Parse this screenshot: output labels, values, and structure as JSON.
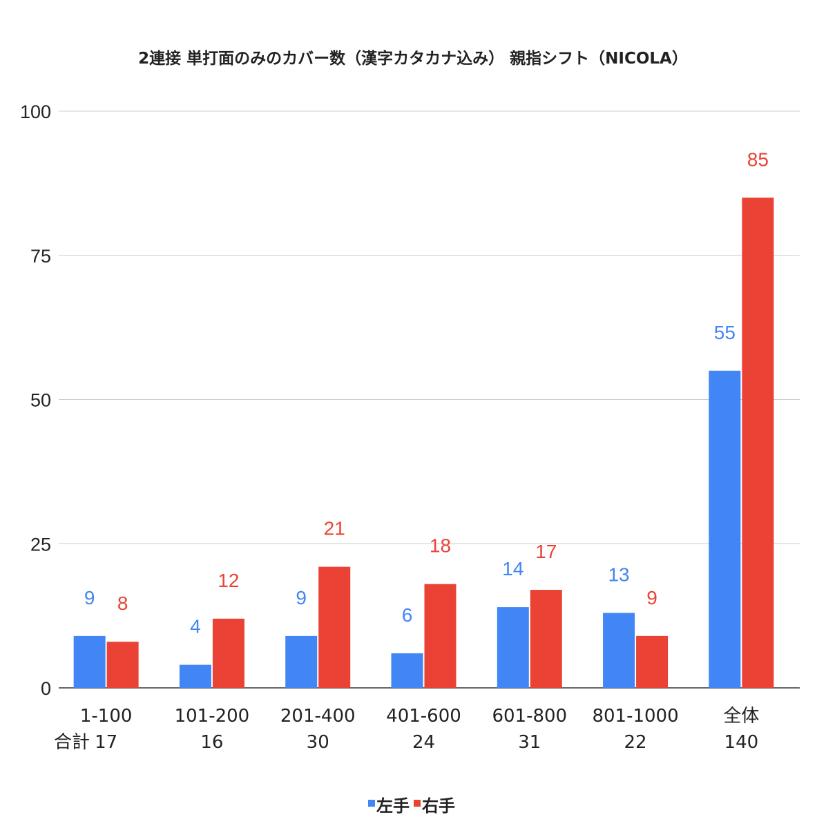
{
  "chart_data": {
    "type": "bar",
    "title": "2連接 単打面のみのカバー数（漢字カタカナ込み） 親指シフト（NICOLA）",
    "categories": [
      "1-100",
      "101-200",
      "201-400",
      "401-600",
      "601-800",
      "801-1000",
      "全体"
    ],
    "row_label": "合計",
    "totals": [
      "17",
      "16",
      "30",
      "24",
      "31",
      "22",
      "140"
    ],
    "series": [
      {
        "name": "左手",
        "color": "#4285f4",
        "values": [
          9,
          4,
          9,
          6,
          14,
          13,
          55
        ]
      },
      {
        "name": "右手",
        "color": "#ea4335",
        "values": [
          8,
          12,
          21,
          18,
          17,
          9,
          85
        ]
      }
    ],
    "ylim": [
      0,
      100
    ],
    "yticks": [
      0,
      25,
      50,
      75,
      100
    ],
    "grid": true,
    "legend_position": "bottom",
    "data_labels": true
  }
}
